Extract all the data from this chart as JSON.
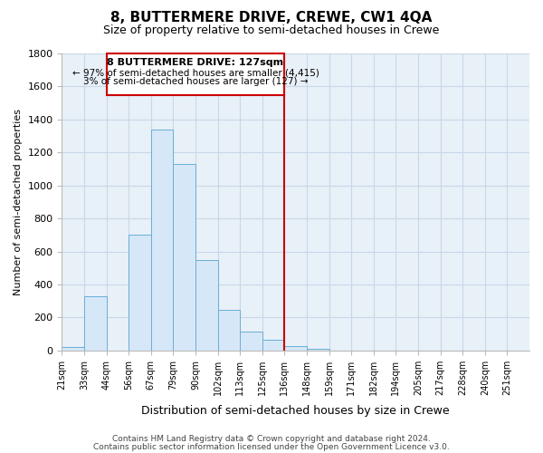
{
  "title": "8, BUTTERMERE DRIVE, CREWE, CW1 4QA",
  "subtitle": "Size of property relative to semi-detached houses in Crewe",
  "xlabel": "Distribution of semi-detached houses by size in Crewe",
  "ylabel": "Number of semi-detached properties",
  "bin_labels": [
    "21sqm",
    "33sqm",
    "44sqm",
    "56sqm",
    "67sqm",
    "79sqm",
    "90sqm",
    "102sqm",
    "113sqm",
    "125sqm",
    "136sqm",
    "148sqm",
    "159sqm",
    "171sqm",
    "182sqm",
    "194sqm",
    "205sqm",
    "217sqm",
    "228sqm",
    "240sqm",
    "251sqm"
  ],
  "bar_heights": [
    20,
    330,
    0,
    700,
    1340,
    1130,
    550,
    245,
    115,
    65,
    25,
    10,
    0,
    0,
    0,
    0,
    0,
    0,
    0,
    0
  ],
  "bar_color": "#d6e8f7",
  "bar_edge_color": "#6baed6",
  "marker_line_color": "#cc0000",
  "annotation_title": "8 BUTTERMERE DRIVE: 127sqm",
  "annotation_line1": "← 97% of semi-detached houses are smaller (4,415)",
  "annotation_line2": "3% of semi-detached houses are larger (127) →",
  "ylim": [
    0,
    1800
  ],
  "yticks": [
    0,
    200,
    400,
    600,
    800,
    1000,
    1200,
    1400,
    1600,
    1800
  ],
  "footer_line1": "Contains HM Land Registry data © Crown copyright and database right 2024.",
  "footer_line2": "Contains public sector information licensed under the Open Government Licence v3.0.",
  "background_color": "#ffffff",
  "plot_bg_color": "#e8f0f8",
  "grid_color": "#c8d8e8"
}
